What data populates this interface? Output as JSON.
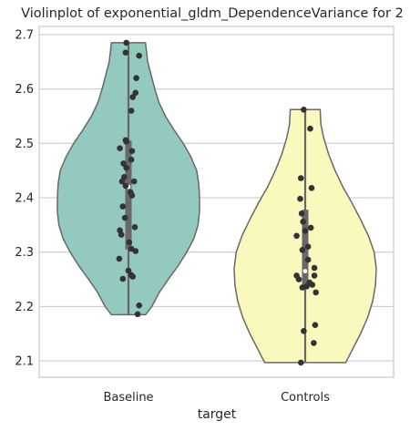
{
  "chart_data": {
    "type": "violin",
    "title": "Violinplot of exponential_gldm_DependenceVariance for 2",
    "xlabel": "target",
    "ylabel": "",
    "categories": [
      "Baseline",
      "Controls"
    ],
    "ylim": [
      2.07,
      2.715
    ],
    "yticks": [
      2.1,
      2.2,
      2.3,
      2.4,
      2.5,
      2.6,
      2.7
    ],
    "ytick_labels": [
      "2.1",
      "2.2",
      "2.3",
      "2.4",
      "2.5",
      "2.6",
      "2.7"
    ],
    "grid": true,
    "colors": {
      "Baseline": "#93c9be",
      "Controls": "#f9f8bd",
      "points": "#333333",
      "outline": "#686868"
    },
    "series": [
      {
        "category": "Baseline",
        "min": 2.185,
        "max": 2.685,
        "q1": 2.305,
        "median": 2.42,
        "q3": 2.505,
        "density": [
          [
            2.185,
            0.24
          ],
          [
            2.2,
            0.33
          ],
          [
            2.225,
            0.43
          ],
          [
            2.25,
            0.56
          ],
          [
            2.275,
            0.7
          ],
          [
            2.3,
            0.82
          ],
          [
            2.325,
            0.92
          ],
          [
            2.35,
            0.98
          ],
          [
            2.375,
            1.0
          ],
          [
            2.4,
            1.0
          ],
          [
            2.425,
            0.99
          ],
          [
            2.45,
            0.96
          ],
          [
            2.475,
            0.88
          ],
          [
            2.5,
            0.77
          ],
          [
            2.525,
            0.64
          ],
          [
            2.55,
            0.52
          ],
          [
            2.575,
            0.43
          ],
          [
            2.6,
            0.37
          ],
          [
            2.625,
            0.32
          ],
          [
            2.65,
            0.27
          ],
          [
            2.685,
            0.24
          ]
        ],
        "points": [
          [
            -0.03,
            2.685
          ],
          [
            -0.04,
            2.667
          ],
          [
            0.15,
            2.661
          ],
          [
            0.11,
            2.62
          ],
          [
            0.1,
            2.593
          ],
          [
            0.06,
            2.585
          ],
          [
            0.04,
            2.56
          ],
          [
            -0.04,
            2.506
          ],
          [
            -0.03,
            2.503
          ],
          [
            0.05,
            2.486
          ],
          [
            -0.12,
            2.491
          ],
          [
            0.04,
            2.47
          ],
          [
            -0.07,
            2.463
          ],
          [
            -0.03,
            2.455
          ],
          [
            -0.06,
            2.438
          ],
          [
            0.08,
            2.43
          ],
          [
            -0.09,
            2.43
          ],
          [
            -0.04,
            2.422
          ],
          [
            0.05,
            2.404
          ],
          [
            0.03,
            2.41
          ],
          [
            -0.08,
            2.384
          ],
          [
            -0.12,
            2.34
          ],
          [
            0.09,
            2.346
          ],
          [
            -0.05,
            2.363
          ],
          [
            -0.1,
            2.332
          ],
          [
            0.01,
            2.318
          ],
          [
            0.04,
            2.306
          ],
          [
            0.1,
            2.302
          ],
          [
            -0.13,
            2.288
          ],
          [
            0.0,
            2.266
          ],
          [
            0.04,
            2.258
          ],
          [
            0.06,
            2.255
          ],
          [
            -0.08,
            2.251
          ],
          [
            0.15,
            2.202
          ],
          [
            0.13,
            2.186
          ]
        ]
      },
      {
        "category": "Controls",
        "min": 2.097,
        "max": 2.562,
        "q1": 2.237,
        "median": 2.265,
        "q3": 2.378,
        "density": [
          [
            2.097,
            0.57
          ],
          [
            2.12,
            0.66
          ],
          [
            2.15,
            0.78
          ],
          [
            2.18,
            0.88
          ],
          [
            2.21,
            0.95
          ],
          [
            2.24,
            0.99
          ],
          [
            2.27,
            1.0
          ],
          [
            2.3,
            0.97
          ],
          [
            2.33,
            0.89
          ],
          [
            2.36,
            0.78
          ],
          [
            2.39,
            0.66
          ],
          [
            2.42,
            0.53
          ],
          [
            2.45,
            0.42
          ],
          [
            2.48,
            0.33
          ],
          [
            2.51,
            0.26
          ],
          [
            2.535,
            0.22
          ],
          [
            2.562,
            0.21
          ]
        ],
        "points": [
          [
            -0.02,
            2.562
          ],
          [
            0.07,
            2.527
          ],
          [
            -0.06,
            2.436
          ],
          [
            0.09,
            2.418
          ],
          [
            -0.07,
            2.398
          ],
          [
            -0.05,
            2.371
          ],
          [
            -0.03,
            2.356
          ],
          [
            0.08,
            2.345
          ],
          [
            0.0,
            2.339
          ],
          [
            -0.12,
            2.33
          ],
          [
            -0.04,
            2.304
          ],
          [
            0.04,
            2.31
          ],
          [
            0.04,
            2.286
          ],
          [
            0.13,
            2.271
          ],
          [
            0.13,
            2.257
          ],
          [
            -0.12,
            2.257
          ],
          [
            -0.09,
            2.25
          ],
          [
            0.1,
            2.24
          ],
          [
            -0.04,
            2.235
          ],
          [
            0.02,
            2.237
          ],
          [
            0.06,
            2.244
          ],
          [
            0.15,
            2.226
          ],
          [
            0.14,
            2.166
          ],
          [
            -0.02,
            2.155
          ],
          [
            0.12,
            2.133
          ],
          [
            -0.06,
            2.097
          ]
        ]
      }
    ]
  }
}
